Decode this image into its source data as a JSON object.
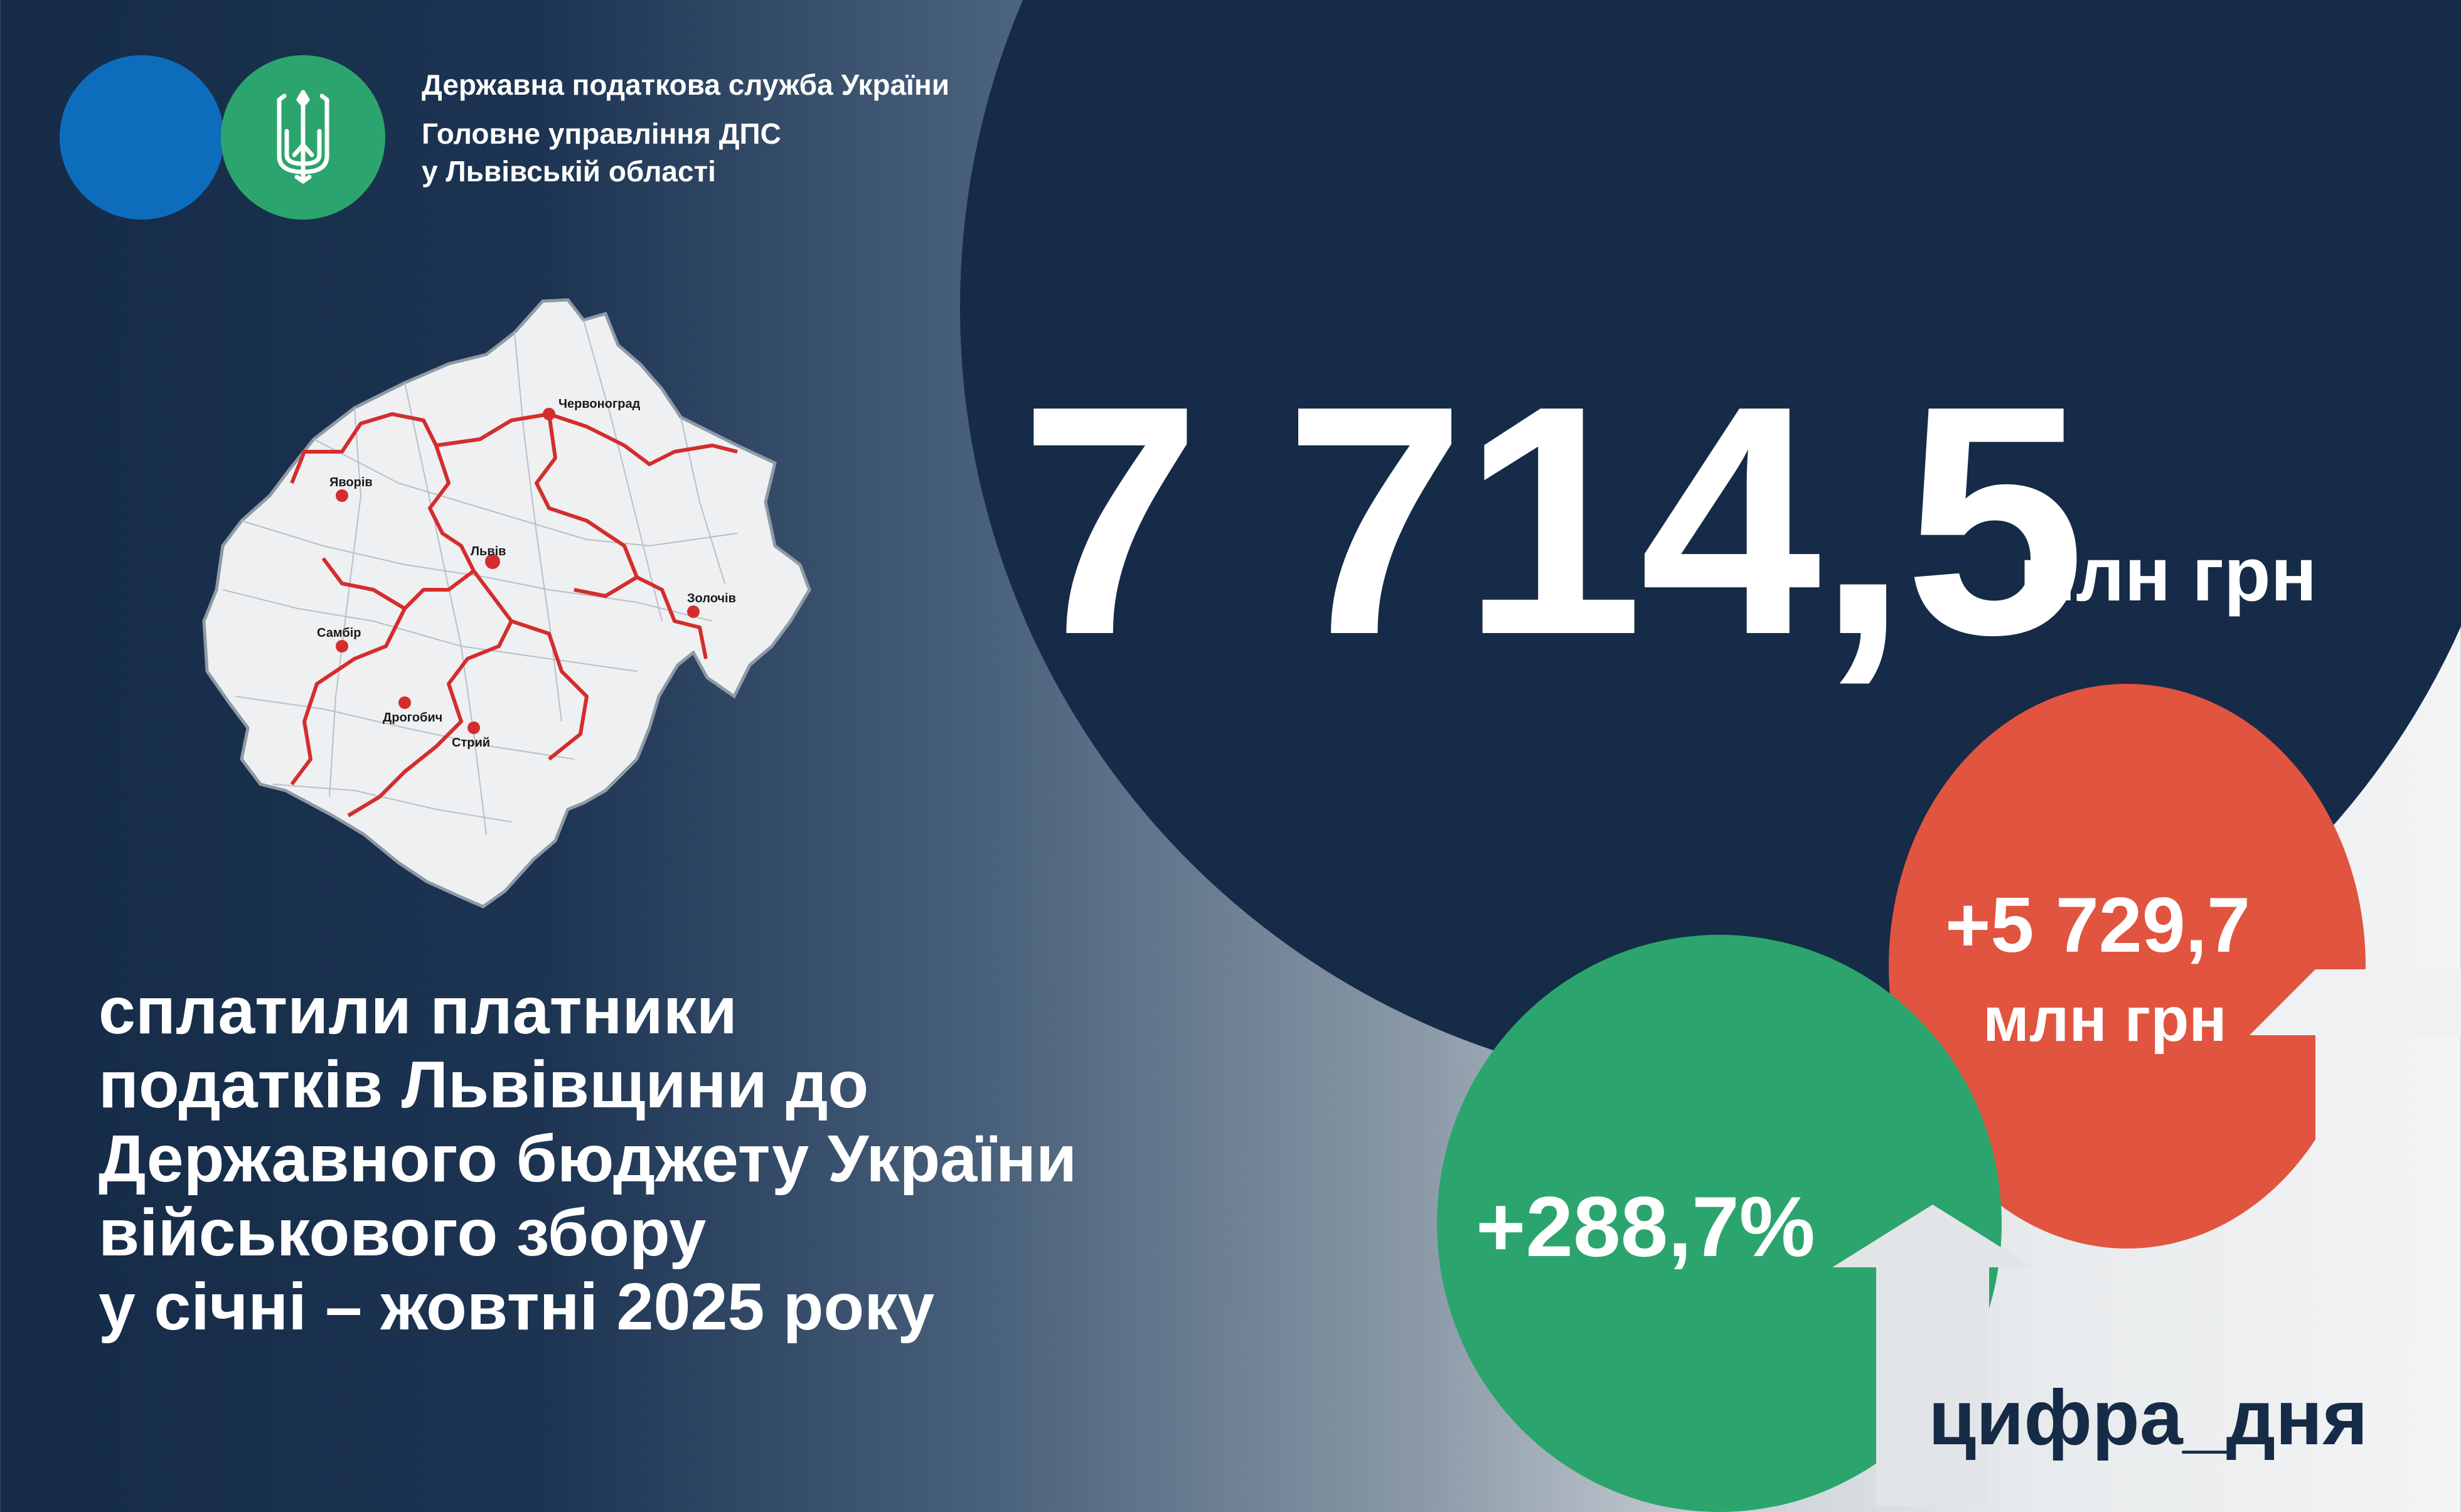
{
  "organization": {
    "line1": "Державна податкова служба України",
    "line2": "Головне управління ДПС",
    "line3": "у Львівській області"
  },
  "map": {
    "cities": [
      "Червоноград",
      "Яворів",
      "Львів",
      "Золочів",
      "Самбір",
      "Дрогобич",
      "Стрий"
    ]
  },
  "figure": {
    "value": "7 714,5",
    "unit": "млн грн"
  },
  "increase_amount": {
    "value": "+5 729,7",
    "unit": "млн грн"
  },
  "increase_percent": {
    "value": "+288,7%"
  },
  "description": {
    "lines": [
      "сплатили платники",
      "податків Львівщини до",
      "Державного бюджету України",
      "військового збору",
      "у січні – жовтні 2025 року"
    ]
  },
  "hashtag": "цифра_дня",
  "colors": {
    "navy": "#152b47",
    "blue": "#0e6cbc",
    "green": "#2ba56d",
    "red": "#e05440",
    "border_red": "#d42d2d"
  }
}
